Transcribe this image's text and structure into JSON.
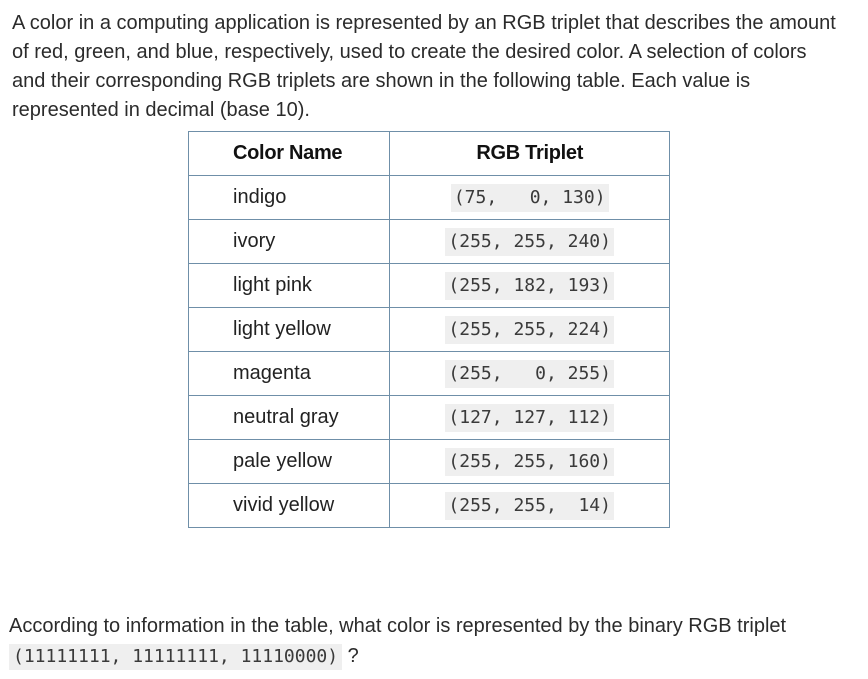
{
  "intro_text": "A color in a computing application is represented by an RGB triplet that describes the amount of red, green, and blue, respectively, used to create the desired color. A selection of colors and their corresponding RGB triplets are shown in the following table. Each value is represented in decimal (base 10).",
  "table": {
    "headers": {
      "name": "Color Name",
      "rgb": "RGB Triplet"
    },
    "rows": [
      {
        "name": "indigo",
        "rgb": "(75,   0, 130)"
      },
      {
        "name": "ivory",
        "rgb": "(255, 255, 240)"
      },
      {
        "name": "light pink",
        "rgb": "(255, 182, 193)"
      },
      {
        "name": "light yellow",
        "rgb": "(255, 255, 224)"
      },
      {
        "name": "magenta",
        "rgb": "(255,   0, 255)"
      },
      {
        "name": "neutral gray",
        "rgb": "(127, 127, 112)"
      },
      {
        "name": "pale yellow",
        "rgb": "(255, 255, 160)"
      },
      {
        "name": "vivid yellow",
        "rgb": "(255, 255,  14)"
      }
    ]
  },
  "question": {
    "before": "According to information in the table, what color is represented by the binary RGB triplet",
    "code": "(11111111, 11111111, 11110000)",
    "after": "?"
  }
}
